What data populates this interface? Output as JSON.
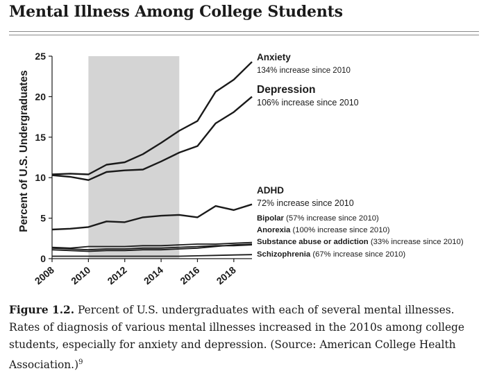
{
  "page": {
    "title": "Mental Illness Among College Students"
  },
  "figure": {
    "label": "Figure 1.2.",
    "caption_line1": " Percent of U.S. undergraduates with each of several mental illnesses.",
    "caption_rest": "Rates of diagnosis of various mental illnesses increased in the 2010s among college students, especially for anxiety and depression. (Source: American College Health Association.)",
    "footnote": "9"
  },
  "colors": {
    "line": "#1a1a1a",
    "shade": "#d4d4d4",
    "text": "#1a1a1a"
  },
  "chart_data": {
    "type": "line",
    "title": "",
    "xlabel": "",
    "ylabel": "Percent of U.S. Undergraduates",
    "xlim": [
      2008,
      2019
    ],
    "ylim": [
      0,
      25
    ],
    "xticks": [
      2008,
      2010,
      2012,
      2014,
      2016,
      2018
    ],
    "yticks": [
      0,
      5,
      10,
      15,
      20,
      25
    ],
    "grid": false,
    "shaded_region": [
      2010,
      2015
    ],
    "x": [
      2008,
      2009,
      2010,
      2011,
      2012,
      2013,
      2014,
      2015,
      2016,
      2017,
      2018,
      2019
    ],
    "series": [
      {
        "name": "Anxiety",
        "note": "134% increase since 2010",
        "label_style": "large",
        "values": [
          10.4,
          10.5,
          10.4,
          11.6,
          11.9,
          12.9,
          14.3,
          15.8,
          17.0,
          20.6,
          22.1,
          24.3
        ]
      },
      {
        "name": "Depression",
        "note": "106% increase since 2010",
        "label_style": "large",
        "values": [
          10.3,
          10.1,
          9.7,
          10.7,
          10.9,
          11.0,
          12.0,
          13.1,
          13.9,
          16.7,
          18.1,
          20.0
        ]
      },
      {
        "name": "ADHD",
        "note": "72% increase since 2010",
        "label_style": "large",
        "values": [
          3.6,
          3.7,
          3.9,
          4.6,
          4.5,
          5.1,
          5.3,
          5.4,
          5.1,
          6.5,
          6.0,
          6.7
        ]
      },
      {
        "name": "Bipolar",
        "note": "(57% increase since 2010)",
        "label_style": "small",
        "values": [
          1.3,
          1.2,
          1.1,
          1.2,
          1.2,
          1.3,
          1.3,
          1.4,
          1.5,
          1.6,
          1.6,
          1.7
        ]
      },
      {
        "name": "Anorexia",
        "note": "(100% increase since 2010)",
        "label_style": "small",
        "values": [
          1.1,
          1.0,
          0.9,
          1.0,
          1.0,
          1.1,
          1.1,
          1.2,
          1.3,
          1.5,
          1.7,
          1.8
        ]
      },
      {
        "name": "Substance abuse or addiction",
        "note": "(33% increase since 2010)",
        "label_style": "small",
        "values": [
          1.4,
          1.3,
          1.5,
          1.5,
          1.5,
          1.6,
          1.6,
          1.7,
          1.8,
          1.8,
          1.9,
          2.0
        ]
      },
      {
        "name": "Schizophrenia",
        "note": "(67% increase since 2010)",
        "label_style": "small",
        "values": [
          0.3,
          0.3,
          0.3,
          0.3,
          0.3,
          0.3,
          0.3,
          0.3,
          0.35,
          0.4,
          0.45,
          0.5
        ]
      }
    ]
  }
}
